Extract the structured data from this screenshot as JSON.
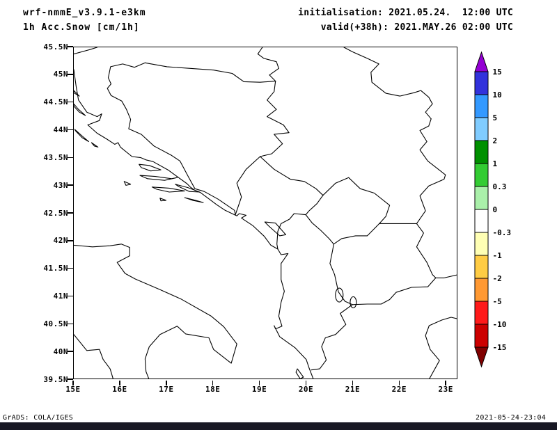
{
  "header": {
    "model": "wrf-nmmE_v3.9.1-e3km",
    "field": "1h Acc.Snow [cm/1h]",
    "init": "initialisation: 2021.05.24.  12:00 UTC",
    "valid": "valid(+38h): 2021.MAY.26 02:00 UTC"
  },
  "map": {
    "lat_ticks": [
      "45.5N",
      "45N",
      "44.5N",
      "44N",
      "43.5N",
      "43N",
      "42.5N",
      "42N",
      "41.5N",
      "41N",
      "40.5N",
      "40N",
      "39.5N"
    ],
    "lon_ticks": [
      "15E",
      "16E",
      "17E",
      "18E",
      "19E",
      "20E",
      "21E",
      "22E",
      "23E"
    ]
  },
  "colorbar": {
    "labels": [
      "15",
      "10",
      "5",
      "2",
      "1",
      "0.3",
      "0",
      "-0.3",
      "-1",
      "-2",
      "-5",
      "-10",
      "-15"
    ],
    "segment_colors": [
      "#3232dc",
      "#3399ff",
      "#80ccff",
      "#009000",
      "#33cc33",
      "#aaf0aa",
      "#ffffff",
      "#ffffb4",
      "#ffcc44",
      "#ff9933",
      "#ff1a1a",
      "#cc0000"
    ],
    "arrow_top_color": "#9400d3",
    "arrow_bottom_color": "#800000"
  },
  "footer": {
    "credit": "GrADS: COLA/IGES",
    "timestamp": "2021-05-24-23:04"
  }
}
